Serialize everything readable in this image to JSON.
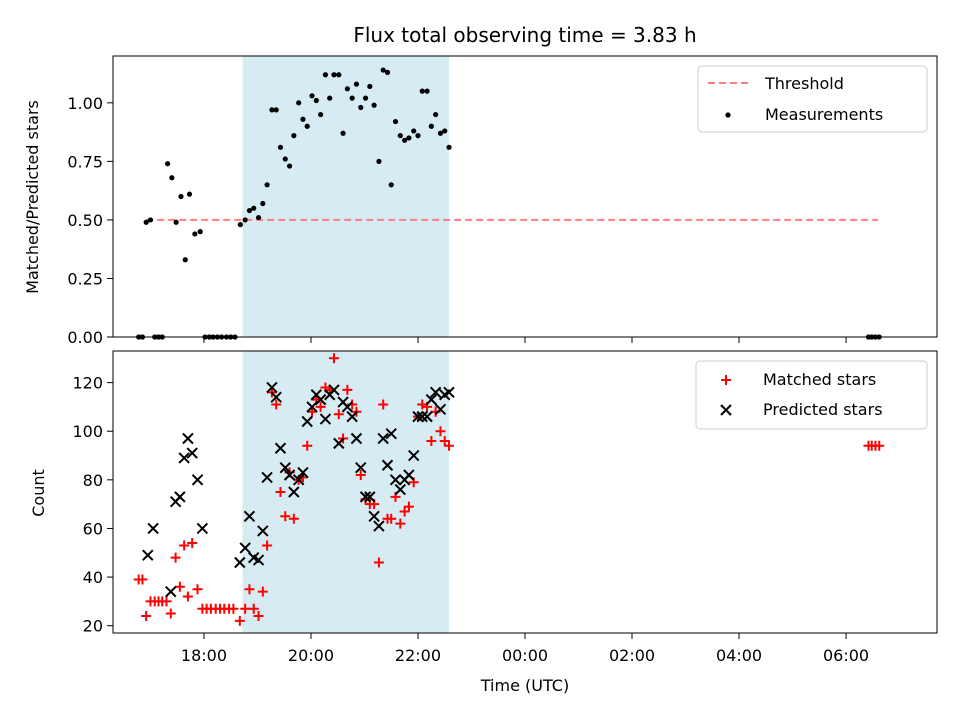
{
  "figure_title": "Flux total observing time = 3.83 h",
  "xlabel": "Time (UTC)",
  "x_tick_labels": [
    "18:00",
    "20:00",
    "22:00",
    "00:00",
    "02:00",
    "04:00",
    "06:00"
  ],
  "x_tick_hours": [
    18,
    20,
    22,
    24,
    26,
    28,
    30
  ],
  "shading": {
    "start_hour": 18.72,
    "end_hour": 22.58,
    "color": "#add8e6",
    "alpha": 0.5
  },
  "colors": {
    "threshold": "#ff7f7f",
    "measurements": "#000000",
    "matched": "#ff0000",
    "predicted": "#000000"
  },
  "chart_data": [
    {
      "type": "scatter",
      "name": "ratio",
      "ylabel": "Matched/Predicted stars",
      "xlim_hours": [
        16.3,
        31.7
      ],
      "ylim": [
        0.0,
        1.2
      ],
      "y_ticks": [
        0.0,
        0.25,
        0.5,
        0.75,
        1.0
      ],
      "y_tick_labels": [
        "0.00",
        "0.25",
        "0.50",
        "0.75",
        "1.00"
      ],
      "legend": {
        "position": "top-right",
        "entries": [
          "Threshold",
          "Measurements"
        ]
      },
      "threshold": {
        "name": "Threshold",
        "x_hours": [
          16.92,
          30.6
        ],
        "y": 0.5,
        "style": "dashed"
      },
      "series": [
        {
          "name": "Measurements",
          "marker": "dot",
          "points": [
            [
              16.78,
              0.0
            ],
            [
              16.85,
              0.0
            ],
            [
              16.92,
              0.49
            ],
            [
              17.0,
              0.5
            ],
            [
              17.08,
              0.0
            ],
            [
              17.15,
              0.0
            ],
            [
              17.22,
              0.0
            ],
            [
              17.32,
              0.74
            ],
            [
              17.4,
              0.68
            ],
            [
              17.48,
              0.49
            ],
            [
              17.57,
              0.6
            ],
            [
              17.65,
              0.33
            ],
            [
              17.73,
              0.61
            ],
            [
              17.83,
              0.44
            ],
            [
              17.93,
              0.45
            ],
            [
              18.02,
              0.0
            ],
            [
              18.1,
              0.0
            ],
            [
              18.17,
              0.0
            ],
            [
              18.25,
              0.0
            ],
            [
              18.33,
              0.0
            ],
            [
              18.42,
              0.0
            ],
            [
              18.5,
              0.0
            ],
            [
              18.58,
              0.0
            ],
            [
              18.68,
              0.48
            ],
            [
              18.77,
              0.5
            ],
            [
              18.85,
              0.54
            ],
            [
              18.93,
              0.55
            ],
            [
              19.02,
              0.51
            ],
            [
              19.1,
              0.57
            ],
            [
              19.18,
              0.65
            ],
            [
              19.27,
              0.97
            ],
            [
              19.35,
              0.97
            ],
            [
              19.43,
              0.81
            ],
            [
              19.52,
              0.76
            ],
            [
              19.6,
              0.73
            ],
            [
              19.68,
              0.86
            ],
            [
              19.77,
              1.0
            ],
            [
              19.85,
              0.93
            ],
            [
              19.93,
              0.9
            ],
            [
              20.02,
              1.03
            ],
            [
              20.1,
              1.01
            ],
            [
              20.18,
              0.95
            ],
            [
              20.27,
              1.12
            ],
            [
              20.35,
              1.02
            ],
            [
              20.43,
              1.12
            ],
            [
              20.52,
              1.12
            ],
            [
              20.6,
              0.87
            ],
            [
              20.68,
              1.06
            ],
            [
              20.77,
              1.02
            ],
            [
              20.85,
              1.08
            ],
            [
              20.93,
              0.98
            ],
            [
              21.02,
              1.02
            ],
            [
              21.1,
              1.07
            ],
            [
              21.18,
              0.99
            ],
            [
              21.27,
              0.75
            ],
            [
              21.35,
              1.14
            ],
            [
              21.43,
              1.13
            ],
            [
              21.5,
              0.65
            ],
            [
              21.58,
              0.92
            ],
            [
              21.67,
              0.86
            ],
            [
              21.75,
              0.84
            ],
            [
              21.83,
              0.85
            ],
            [
              21.92,
              0.88
            ],
            [
              22.0,
              0.86
            ],
            [
              22.08,
              1.05
            ],
            [
              22.17,
              1.05
            ],
            [
              22.25,
              0.9
            ],
            [
              22.33,
              0.95
            ],
            [
              22.42,
              0.87
            ],
            [
              22.5,
              0.88
            ],
            [
              22.58,
              0.81
            ],
            [
              30.42,
              0.0
            ],
            [
              30.48,
              0.0
            ],
            [
              30.55,
              0.0
            ],
            [
              30.62,
              0.0
            ]
          ]
        }
      ]
    },
    {
      "type": "scatter",
      "name": "counts",
      "ylabel": "Count",
      "xlim_hours": [
        16.3,
        31.7
      ],
      "ylim": [
        17,
        133
      ],
      "y_ticks": [
        20,
        40,
        60,
        80,
        100,
        120
      ],
      "y_tick_labels": [
        "20",
        "40",
        "60",
        "80",
        "100",
        "120"
      ],
      "legend": {
        "position": "top-right",
        "entries": [
          "Matched stars",
          "Predicted stars"
        ]
      },
      "series": [
        {
          "name": "Matched stars",
          "marker": "plus",
          "points": [
            [
              16.78,
              39
            ],
            [
              16.85,
              39
            ],
            [
              16.92,
              24
            ],
            [
              17.0,
              30
            ],
            [
              17.08,
              30
            ],
            [
              17.15,
              30
            ],
            [
              17.22,
              30
            ],
            [
              17.3,
              30
            ],
            [
              17.38,
              25
            ],
            [
              17.47,
              48
            ],
            [
              17.55,
              36
            ],
            [
              17.63,
              53
            ],
            [
              17.7,
              32
            ],
            [
              17.78,
              54
            ],
            [
              17.88,
              35
            ],
            [
              17.97,
              27
            ],
            [
              18.05,
              27
            ],
            [
              18.13,
              27
            ],
            [
              18.22,
              27
            ],
            [
              18.3,
              27
            ],
            [
              18.38,
              27
            ],
            [
              18.47,
              27
            ],
            [
              18.55,
              27
            ],
            [
              18.67,
              22
            ],
            [
              18.77,
              27
            ],
            [
              18.85,
              35
            ],
            [
              18.93,
              27
            ],
            [
              19.02,
              24
            ],
            [
              19.1,
              34
            ],
            [
              19.18,
              53
            ],
            [
              19.27,
              116
            ],
            [
              19.35,
              111
            ],
            [
              19.43,
              75
            ],
            [
              19.52,
              65
            ],
            [
              19.6,
              83
            ],
            [
              19.68,
              64
            ],
            [
              19.77,
              80
            ],
            [
              19.85,
              81
            ],
            [
              19.93,
              94
            ],
            [
              20.02,
              108
            ],
            [
              20.1,
              113
            ],
            [
              20.18,
              110
            ],
            [
              20.27,
              118
            ],
            [
              20.35,
              117
            ],
            [
              20.43,
              130
            ],
            [
              20.52,
              107
            ],
            [
              20.6,
              97
            ],
            [
              20.68,
              117
            ],
            [
              20.77,
              111
            ],
            [
              20.85,
              108
            ],
            [
              20.93,
              82
            ],
            [
              21.02,
              72
            ],
            [
              21.1,
              70
            ],
            [
              21.18,
              70
            ],
            [
              21.27,
              46
            ],
            [
              21.35,
              111
            ],
            [
              21.43,
              64
            ],
            [
              21.5,
              64
            ],
            [
              21.58,
              73
            ],
            [
              21.67,
              62
            ],
            [
              21.75,
              67
            ],
            [
              21.83,
              69
            ],
            [
              21.92,
              79
            ],
            [
              22.0,
              106
            ],
            [
              22.08,
              111
            ],
            [
              22.17,
              110
            ],
            [
              22.25,
              96
            ],
            [
              22.33,
              108
            ],
            [
              22.42,
              100
            ],
            [
              22.5,
              96
            ],
            [
              22.58,
              94
            ],
            [
              30.42,
              94
            ],
            [
              30.48,
              94
            ],
            [
              30.55,
              94
            ],
            [
              30.62,
              94
            ]
          ]
        },
        {
          "name": "Predicted stars",
          "marker": "x",
          "points": [
            [
              16.95,
              49
            ],
            [
              17.05,
              60
            ],
            [
              17.38,
              34
            ],
            [
              17.47,
              71
            ],
            [
              17.55,
              73
            ],
            [
              17.63,
              89
            ],
            [
              17.7,
              97
            ],
            [
              17.78,
              91
            ],
            [
              17.88,
              80
            ],
            [
              17.97,
              60
            ],
            [
              18.67,
              46
            ],
            [
              18.77,
              52
            ],
            [
              18.85,
              65
            ],
            [
              18.93,
              48
            ],
            [
              19.02,
              47
            ],
            [
              19.1,
              59
            ],
            [
              19.18,
              81
            ],
            [
              19.27,
              118
            ],
            [
              19.35,
              114
            ],
            [
              19.43,
              93
            ],
            [
              19.52,
              85
            ],
            [
              19.6,
              82
            ],
            [
              19.68,
              75
            ],
            [
              19.77,
              80
            ],
            [
              19.85,
              83
            ],
            [
              19.93,
              104
            ],
            [
              20.02,
              110
            ],
            [
              20.1,
              115
            ],
            [
              20.18,
              113
            ],
            [
              20.27,
              105
            ],
            [
              20.35,
              115
            ],
            [
              20.43,
              117
            ],
            [
              20.52,
              95
            ],
            [
              20.6,
              112
            ],
            [
              20.68,
              110
            ],
            [
              20.77,
              106
            ],
            [
              20.85,
              97
            ],
            [
              20.93,
              85
            ],
            [
              21.02,
              73
            ],
            [
              21.1,
              73
            ],
            [
              21.18,
              65
            ],
            [
              21.27,
              61
            ],
            [
              21.35,
              97
            ],
            [
              21.43,
              86
            ],
            [
              21.5,
              99
            ],
            [
              21.58,
              80
            ],
            [
              21.67,
              76
            ],
            [
              21.75,
              80
            ],
            [
              21.83,
              82
            ],
            [
              21.92,
              90
            ],
            [
              22.0,
              106
            ],
            [
              22.08,
              106
            ],
            [
              22.17,
              106
            ],
            [
              22.25,
              113
            ],
            [
              22.33,
              116
            ],
            [
              22.42,
              109
            ],
            [
              22.5,
              115
            ],
            [
              22.58,
              116
            ]
          ]
        }
      ]
    }
  ]
}
